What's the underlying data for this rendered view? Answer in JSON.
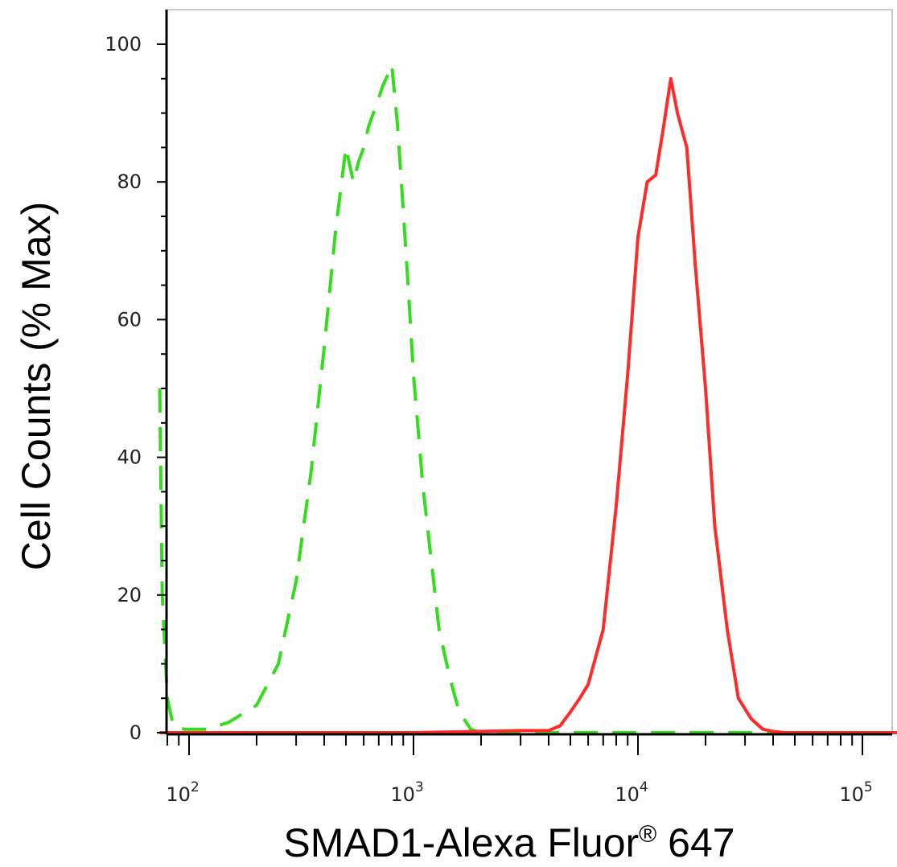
{
  "chart_data": {
    "type": "line",
    "title": "",
    "xlabel": "SMAD1-Alexa Fluor® 647",
    "ylabel": "Cell Counts (% Max)",
    "x_scale": "log",
    "xlim": [
      74,
      150000
    ],
    "ylim": [
      0,
      105
    ],
    "grid": false,
    "legend": "none",
    "y_ticks": [
      "0",
      "20",
      "40",
      "60",
      "80",
      "100"
    ],
    "x_tick_labels": [
      {
        "base": "10",
        "exp": "2"
      },
      {
        "base": "10",
        "exp": "3"
      },
      {
        "base": "10",
        "exp": "4"
      },
      {
        "base": "10",
        "exp": "5"
      }
    ],
    "series": [
      {
        "color": "#33dd1c",
        "dash": true,
        "x": [
          74,
          76,
          80,
          85,
          95,
          120,
          150,
          200,
          250,
          300,
          350,
          400,
          450,
          500,
          540,
          570,
          600,
          630,
          680,
          730,
          780,
          800,
          850,
          900,
          950,
          1000,
          1100,
          1200,
          1300,
          1450,
          1600,
          1800,
          2000,
          2200,
          3000,
          6000,
          20000,
          60000,
          150000
        ],
        "y": [
          50,
          20,
          5,
          1,
          0.5,
          0.5,
          1.5,
          4,
          10,
          22,
          38,
          56,
          73,
          85,
          80,
          83,
          85,
          88,
          91,
          94,
          96,
          97,
          88,
          76,
          64,
          52,
          36,
          25,
          15,
          8,
          3,
          0.5,
          0,
          0,
          0,
          0,
          0,
          0,
          0
        ]
      },
      {
        "color": "#ff2a2a",
        "dash": false,
        "x": [
          74,
          1000,
          3000,
          4000,
          4500,
          5000,
          5500,
          6000,
          7000,
          8000,
          9000,
          10000,
          11000,
          12000,
          13000,
          14000,
          15000,
          16500,
          18000,
          20000,
          22000,
          25000,
          28000,
          32000,
          36000,
          40000,
          45000,
          60000,
          150000
        ],
        "y": [
          0,
          0,
          0.3,
          0.3,
          1,
          3,
          5,
          7,
          15,
          33,
          52,
          72,
          80,
          81,
          88,
          95,
          90,
          85,
          68,
          50,
          30,
          15,
          5,
          2,
          0.5,
          0.2,
          0,
          0,
          0
        ]
      }
    ]
  }
}
